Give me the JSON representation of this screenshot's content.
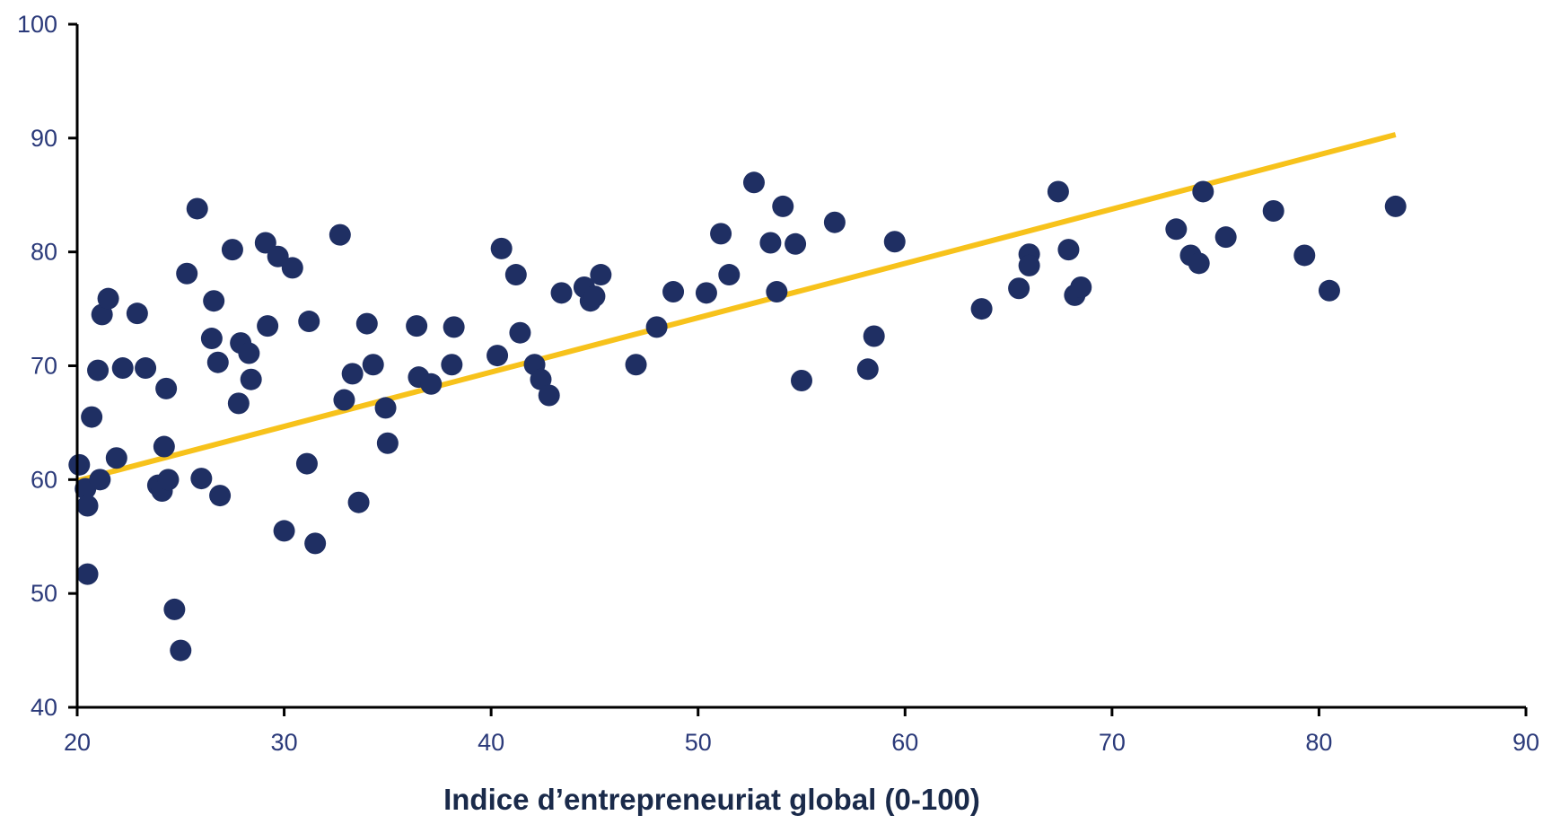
{
  "chart_data": {
    "type": "scatter",
    "title": "",
    "xlabel": "Indice d’entrepreneuriat global (0-100)",
    "ylabel": "",
    "xlim": [
      20,
      90
    ],
    "ylim": [
      40,
      100
    ],
    "x_ticks": [
      "20",
      "30",
      "40",
      "50",
      "60",
      "70",
      "80",
      "90"
    ],
    "y_ticks": [
      "40",
      "50",
      "60",
      "70",
      "80",
      "90",
      "100"
    ],
    "grid": false,
    "legend": "none",
    "colors": {
      "points": "#1f2f63",
      "trendline": "#f7c21b",
      "axis": "#000000",
      "ticks_text": "#2b3a7a"
    },
    "trendline": {
      "x": [
        20,
        83.7
      ],
      "y": [
        59.9,
        90.3
      ]
    },
    "points": [
      [
        20.1,
        61.3
      ],
      [
        20.4,
        59.2
      ],
      [
        20.5,
        57.7
      ],
      [
        20.5,
        51.7
      ],
      [
        20.7,
        65.5
      ],
      [
        21.0,
        69.6
      ],
      [
        21.1,
        60.0
      ],
      [
        21.2,
        74.5
      ],
      [
        21.5,
        75.9
      ],
      [
        21.9,
        61.9
      ],
      [
        22.2,
        69.8
      ],
      [
        22.9,
        74.6
      ],
      [
        23.3,
        69.8
      ],
      [
        23.9,
        59.5
      ],
      [
        24.1,
        59.0
      ],
      [
        24.2,
        62.9
      ],
      [
        24.3,
        68.0
      ],
      [
        24.4,
        60.0
      ],
      [
        24.7,
        48.6
      ],
      [
        25.0,
        45.0
      ],
      [
        25.3,
        78.1
      ],
      [
        25.8,
        83.8
      ],
      [
        26.0,
        60.1
      ],
      [
        26.5,
        72.4
      ],
      [
        26.6,
        75.7
      ],
      [
        26.8,
        70.3
      ],
      [
        26.9,
        58.6
      ],
      [
        27.5,
        80.2
      ],
      [
        27.8,
        66.7
      ],
      [
        27.9,
        72.0
      ],
      [
        28.3,
        71.1
      ],
      [
        28.4,
        68.8
      ],
      [
        29.1,
        80.8
      ],
      [
        29.2,
        73.5
      ],
      [
        29.7,
        79.6
      ],
      [
        30.0,
        55.5
      ],
      [
        30.4,
        78.6
      ],
      [
        31.1,
        61.4
      ],
      [
        31.2,
        73.9
      ],
      [
        31.5,
        54.4
      ],
      [
        32.7,
        81.5
      ],
      [
        32.9,
        67.0
      ],
      [
        33.3,
        69.3
      ],
      [
        33.6,
        58.0
      ],
      [
        34.0,
        73.7
      ],
      [
        34.3,
        70.1
      ],
      [
        34.9,
        66.3
      ],
      [
        35.0,
        63.2
      ],
      [
        36.4,
        73.5
      ],
      [
        36.5,
        69.0
      ],
      [
        37.1,
        68.4
      ],
      [
        38.1,
        70.1
      ],
      [
        38.2,
        73.4
      ],
      [
        40.3,
        70.9
      ],
      [
        40.5,
        80.3
      ],
      [
        41.2,
        78.0
      ],
      [
        41.4,
        72.9
      ],
      [
        42.1,
        70.1
      ],
      [
        42.4,
        68.8
      ],
      [
        42.8,
        67.4
      ],
      [
        43.4,
        76.4
      ],
      [
        44.5,
        76.9
      ],
      [
        44.8,
        75.7
      ],
      [
        45.0,
        76.1
      ],
      [
        45.3,
        78.0
      ],
      [
        47.0,
        70.1
      ],
      [
        48.0,
        73.4
      ],
      [
        48.8,
        76.5
      ],
      [
        50.4,
        76.4
      ],
      [
        51.1,
        81.6
      ],
      [
        51.5,
        78.0
      ],
      [
        52.7,
        86.1
      ],
      [
        53.5,
        80.8
      ],
      [
        53.8,
        76.5
      ],
      [
        54.1,
        84.0
      ],
      [
        54.7,
        80.7
      ],
      [
        55.0,
        68.7
      ],
      [
        56.6,
        82.6
      ],
      [
        58.2,
        69.7
      ],
      [
        58.5,
        72.6
      ],
      [
        59.5,
        80.9
      ],
      [
        63.7,
        75.0
      ],
      [
        65.5,
        76.8
      ],
      [
        66.0,
        79.8
      ],
      [
        66.0,
        78.8
      ],
      [
        67.4,
        85.3
      ],
      [
        67.9,
        80.2
      ],
      [
        68.2,
        76.2
      ],
      [
        68.5,
        76.9
      ],
      [
        73.1,
        82.0
      ],
      [
        73.8,
        79.7
      ],
      [
        74.2,
        79.0
      ],
      [
        74.4,
        85.3
      ],
      [
        75.5,
        81.3
      ],
      [
        77.8,
        83.6
      ],
      [
        79.3,
        79.7
      ],
      [
        80.5,
        76.6
      ],
      [
        83.7,
        84.0
      ]
    ]
  }
}
